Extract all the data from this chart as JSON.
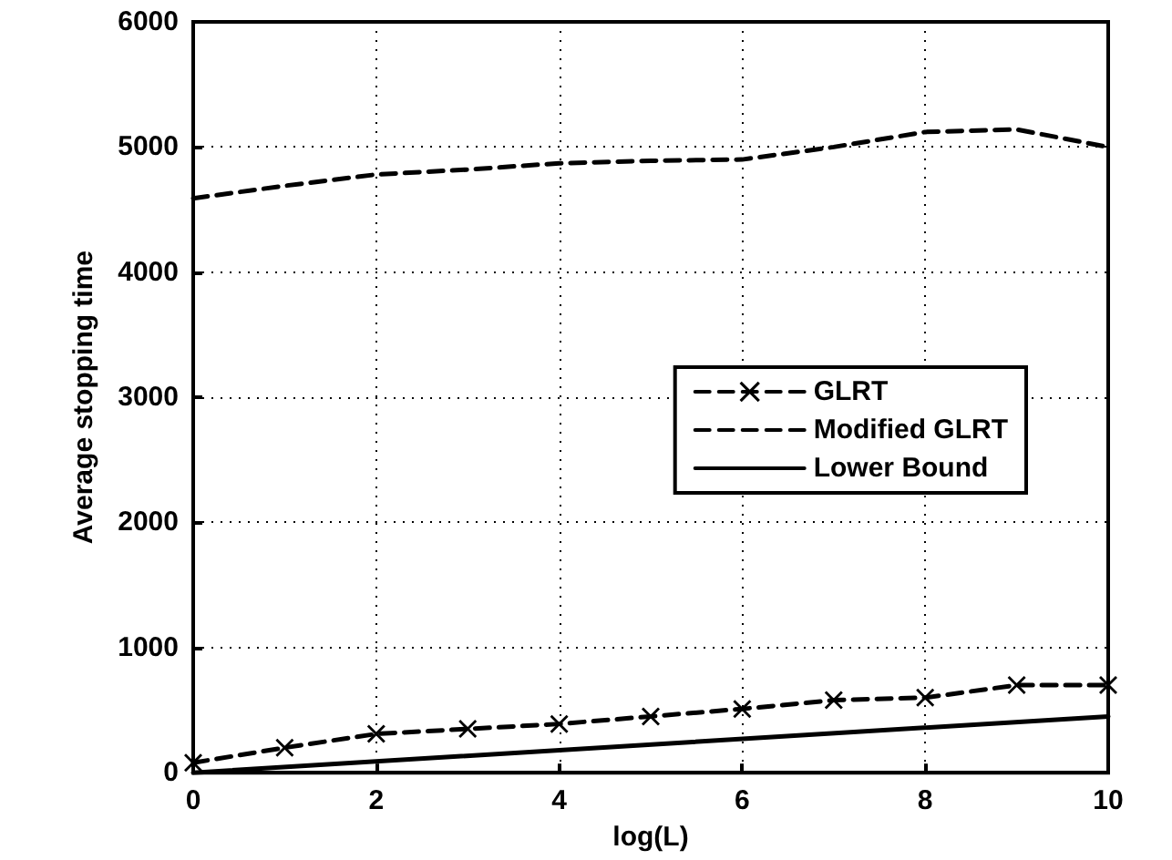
{
  "chart_data": {
    "type": "line",
    "xlabel": "log(L)",
    "ylabel": "Average stopping time",
    "x": [
      0,
      1,
      2,
      3,
      4,
      5,
      6,
      7,
      8,
      9,
      10
    ],
    "series": [
      {
        "name": "GLRT",
        "color": "#000000",
        "line_style": "dashed",
        "marker": "cross",
        "values": [
          80,
          200,
          310,
          350,
          390,
          450,
          510,
          580,
          600,
          700,
          700
        ]
      },
      {
        "name": "Modified GLRT",
        "color": "#000000",
        "line_style": "dashed",
        "marker": "none",
        "values": [
          4590,
          4690,
          4780,
          4820,
          4870,
          4890,
          4900,
          5000,
          5120,
          5140,
          5000
        ]
      },
      {
        "name": "Lower Bound",
        "color": "#000000",
        "line_style": "solid",
        "marker": "none",
        "x": [
          0,
          10
        ],
        "values": [
          0,
          450
        ]
      }
    ],
    "xlim": [
      0,
      10
    ],
    "xticks": [
      0,
      2,
      4,
      6,
      8,
      10
    ],
    "ylim": [
      0,
      6000
    ],
    "yticks": [
      0,
      1000,
      2000,
      3000,
      4000,
      5000,
      6000
    ],
    "grid": true,
    "legend": "right"
  }
}
